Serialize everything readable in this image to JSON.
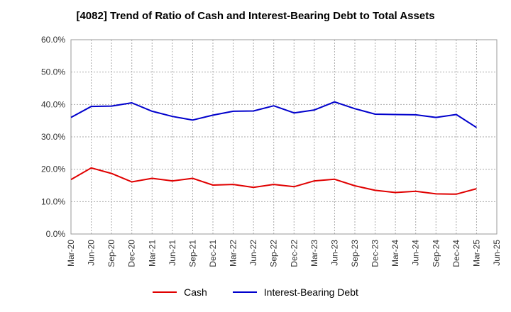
{
  "chart_data": {
    "type": "line",
    "title": "[4082]  Trend of Ratio of Cash and Interest-Bearing Debt to Total Assets",
    "xlabel": "",
    "ylabel": "",
    "categories": [
      "Mar-20",
      "Jun-20",
      "Sep-20",
      "Dec-20",
      "Mar-21",
      "Jun-21",
      "Sep-21",
      "Dec-21",
      "Mar-22",
      "Jun-22",
      "Sep-22",
      "Dec-22",
      "Mar-23",
      "Jun-23",
      "Sep-23",
      "Dec-23",
      "Mar-24",
      "Jun-24",
      "Sep-24",
      "Dec-24",
      "Mar-25",
      "Jun-25"
    ],
    "x_tick_labels": [
      "Mar-20",
      "Jun-20",
      "Sep-20",
      "Dec-20",
      "Mar-21",
      "Jun-21",
      "Sep-21",
      "Dec-21",
      "Mar-22",
      "Jun-22",
      "Sep-22",
      "Dec-22",
      "Mar-23",
      "Jun-23",
      "Sep-23",
      "Dec-23",
      "Mar-24",
      "Jun-24",
      "Sep-24",
      "Dec-24",
      "Mar-25",
      "Jun-25"
    ],
    "y_tick_labels": [
      "0.0%",
      "10.0%",
      "20.0%",
      "30.0%",
      "40.0%",
      "50.0%",
      "60.0%"
    ],
    "ylim": [
      0,
      60
    ],
    "grid": true,
    "legend_position": "bottom",
    "series": [
      {
        "name": "Cash",
        "color": "#e00000",
        "values": [
          16.8,
          20.4,
          18.7,
          16.1,
          17.2,
          16.4,
          17.2,
          15.1,
          15.3,
          14.4,
          15.3,
          14.6,
          16.4,
          16.9,
          14.9,
          13.5,
          12.8,
          13.2,
          12.4,
          12.3,
          14.0,
          null
        ]
      },
      {
        "name": "Interest-Bearing Debt",
        "color": "#0000cc",
        "values": [
          36.0,
          39.4,
          39.5,
          40.5,
          37.9,
          36.3,
          35.2,
          36.7,
          37.9,
          38.0,
          39.6,
          37.4,
          38.3,
          40.8,
          38.7,
          37.0,
          36.9,
          36.8,
          36.0,
          36.9,
          32.9,
          null
        ]
      }
    ]
  }
}
